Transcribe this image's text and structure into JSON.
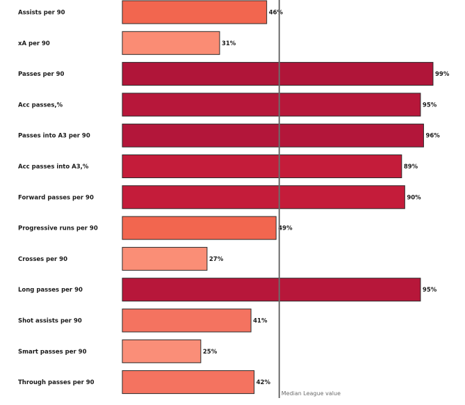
{
  "chart_data": {
    "type": "bar",
    "orientation": "horizontal",
    "title": "",
    "xlabel": "",
    "ylabel": "",
    "xlim": [
      0,
      100
    ],
    "value_suffix": "%",
    "categories": [
      "Assists per 90",
      "xA per 90",
      "Passes per 90",
      "Acc passes,%",
      "Passes into A3 per 90",
      "Acc passes into A3,%",
      "Forward passes per 90",
      "Progressive runs per 90",
      "Crosses per 90",
      "Long passes per 90",
      "Shot assists per 90",
      "Smart passes per 90",
      "Through passes per 90"
    ],
    "values": [
      46,
      31,
      99,
      95,
      96,
      89,
      90,
      49,
      27,
      95,
      41,
      25,
      42
    ],
    "bar_colors": [
      "#F2664F",
      "#FA8C74",
      "#B01539",
      "#B7173A",
      "#B3163A",
      "#C41C3A",
      "#C41C3A",
      "#F2664F",
      "#FA8E76",
      "#B7173A",
      "#F47360",
      "#FA8E78",
      "#F47360"
    ],
    "reference_line": {
      "value": 50,
      "label": "Median League value",
      "color": "#6b6b6b"
    },
    "grid": false,
    "legend": "none"
  }
}
